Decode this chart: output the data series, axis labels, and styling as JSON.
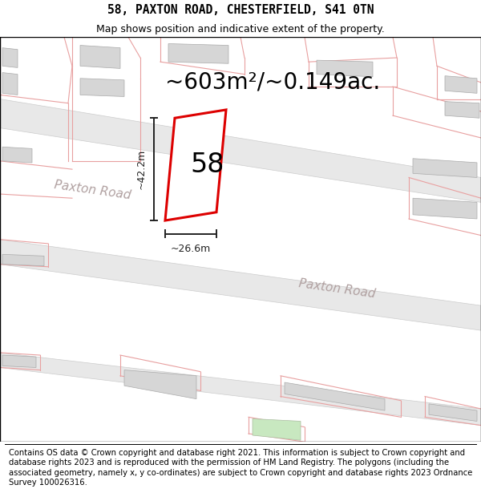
{
  "title_line1": "58, PAXTON ROAD, CHESTERFIELD, S41 0TN",
  "title_line2": "Map shows position and indicative extent of the property.",
  "area_text": "~603m²/~0.149ac.",
  "label_58": "58",
  "dim_width": "~26.6m",
  "dim_height": "~42.2m",
  "road_label1": "Paxton Road",
  "road_label2": "Paxton Road",
  "footer_text": "Contains OS data © Crown copyright and database right 2021. This information is subject to Crown copyright and database rights 2023 and is reproduced with the permission of HM Land Registry. The polygons (including the associated geometry, namely x, y co-ordinates) are subject to Crown copyright and database rights 2023 Ordnance Survey 100026316.",
  "bg_map_color": "#f0eaea",
  "bg_color": "#ffffff",
  "building_color": "#d6d6d6",
  "plot_outline_color": "#dd0000",
  "plot_fill_color": "#ffffff",
  "road_line_color": "#e8a0a0",
  "title_fontsize": 10.5,
  "subtitle_fontsize": 9,
  "area_fontsize": 20,
  "label_fontsize": 24,
  "footer_fontsize": 7.2,
  "road_label_color": "#b0a0a0",
  "dim_color": "#222222"
}
